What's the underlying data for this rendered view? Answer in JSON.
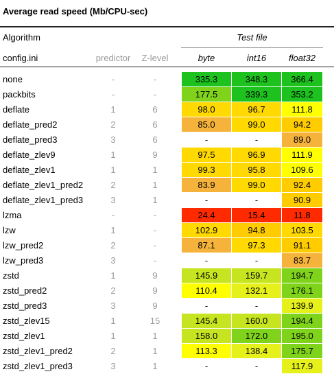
{
  "chart_data": {
    "type": "table",
    "title": "Average read speed (Mb/CPU-sec)",
    "header": {
      "group_left": "Algorithm",
      "group_right": "Test file",
      "col_config": "config.ini",
      "col_predictor": "predictor",
      "col_zlevel": "Z-level"
    },
    "columns": [
      "byte",
      "int16",
      "float32"
    ],
    "rows": [
      {
        "config": "none",
        "predictor": "-",
        "zlevel": "-",
        "values": [
          "335.3",
          "348.3",
          "366.4"
        ]
      },
      {
        "config": "packbits",
        "predictor": "-",
        "zlevel": "-",
        "values": [
          "177.5",
          "339.3",
          "353.2"
        ]
      },
      {
        "config": "deflate",
        "predictor": "1",
        "zlevel": "6",
        "values": [
          "98.0",
          "96.7",
          "111.8"
        ]
      },
      {
        "config": "deflate_pred2",
        "predictor": "2",
        "zlevel": "6",
        "values": [
          "85.0",
          "99.0",
          "94.2"
        ]
      },
      {
        "config": "deflate_pred3",
        "predictor": "3",
        "zlevel": "6",
        "values": [
          "-",
          "-",
          "89.0"
        ]
      },
      {
        "config": "deflate_zlev9",
        "predictor": "1",
        "zlevel": "9",
        "values": [
          "97.5",
          "96.9",
          "111.9"
        ]
      },
      {
        "config": "deflate_zlev1",
        "predictor": "1",
        "zlevel": "1",
        "values": [
          "99.3",
          "95.8",
          "109.6"
        ]
      },
      {
        "config": "deflate_zlev1_pred2",
        "predictor": "2",
        "zlevel": "1",
        "values": [
          "83.9",
          "99.0",
          "92.4"
        ]
      },
      {
        "config": "deflate_zlev1_pred3",
        "predictor": "3",
        "zlevel": "1",
        "values": [
          "-",
          "-",
          "90.9"
        ]
      },
      {
        "config": "lzma",
        "predictor": "-",
        "zlevel": "-",
        "values": [
          "24.4",
          "15.4",
          "11.8"
        ]
      },
      {
        "config": "lzw",
        "predictor": "1",
        "zlevel": "-",
        "values": [
          "102.9",
          "94.8",
          "103.5"
        ]
      },
      {
        "config": "lzw_pred2",
        "predictor": "2",
        "zlevel": "-",
        "values": [
          "87.1",
          "97.3",
          "91.1"
        ]
      },
      {
        "config": "lzw_pred3",
        "predictor": "3",
        "zlevel": "-",
        "values": [
          "-",
          "-",
          "83.7"
        ]
      },
      {
        "config": "zstd",
        "predictor": "1",
        "zlevel": "9",
        "values": [
          "145.9",
          "159.7",
          "194.7"
        ]
      },
      {
        "config": "zstd_pred2",
        "predictor": "2",
        "zlevel": "9",
        "values": [
          "110.4",
          "132.1",
          "176.1"
        ]
      },
      {
        "config": "zstd_pred3",
        "predictor": "3",
        "zlevel": "9",
        "values": [
          "-",
          "-",
          "139.9"
        ]
      },
      {
        "config": "zstd_zlev15",
        "predictor": "1",
        "zlevel": "15",
        "values": [
          "145.4",
          "160.0",
          "194.4"
        ]
      },
      {
        "config": "zstd_zlev1",
        "predictor": "1",
        "zlevel": "1",
        "values": [
          "158.0",
          "172.0",
          "195.0"
        ]
      },
      {
        "config": "zstd_zlev1_pred2",
        "predictor": "2",
        "zlevel": "1",
        "values": [
          "113.3",
          "138.4",
          "175.7"
        ]
      },
      {
        "config": "zstd_zlev1_pred3",
        "predictor": "3",
        "zlevel": "1",
        "values": [
          "-",
          "-",
          "117.9"
        ]
      }
    ],
    "colors": {
      "empty": "#ffffff",
      "scale": [
        {
          "min": 300,
          "color": "#1ec21e"
        },
        {
          "min": 250,
          "color": "#33cc33"
        },
        {
          "min": 170,
          "color": "#7fd31b"
        },
        {
          "min": 140,
          "color": "#c6e41f"
        },
        {
          "min": 115,
          "color": "#e6f01a"
        },
        {
          "min": 105,
          "color": "#ffff00"
        },
        {
          "min": 95,
          "color": "#ffd900"
        },
        {
          "min": 90,
          "color": "#ffcc00"
        },
        {
          "min": 80,
          "color": "#f6b33b"
        },
        {
          "min": 30,
          "color": "#f6b33b"
        },
        {
          "min": 0,
          "color": "#ff2a00"
        }
      ]
    }
  }
}
